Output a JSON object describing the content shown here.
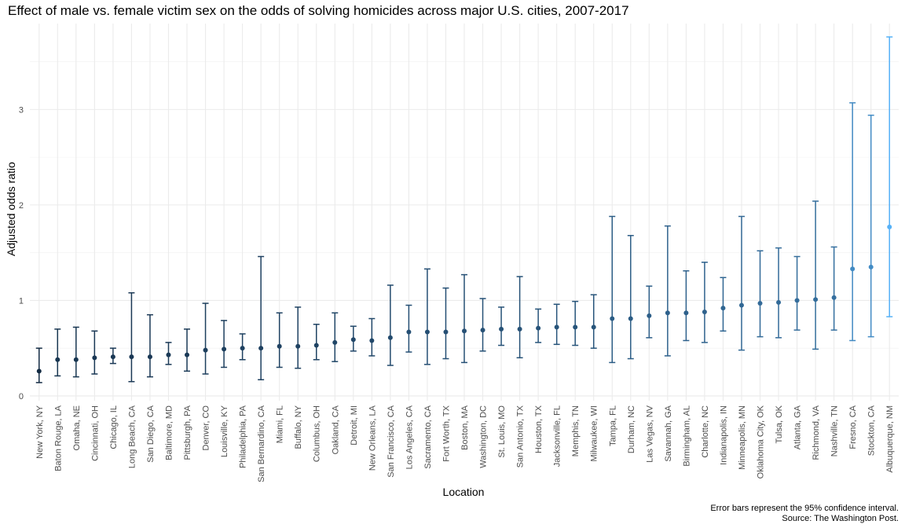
{
  "chart_data": {
    "type": "scatter",
    "title": "Effect of male vs. female victim sex on the odds of solving homicides across major U.S. cities, 2007-2017",
    "xlabel": "Location",
    "ylabel": "Adjusted odds ratio",
    "caption": [
      "Error bars represent the 95% confidence interval.",
      "Source: The Washington Post."
    ],
    "ylim": [
      -0.05,
      3.9
    ],
    "yticks": [
      0,
      1,
      2,
      3
    ],
    "grid": true,
    "error_bars": true,
    "color_scale": {
      "low": "#132b43",
      "high": "#56b1f7",
      "min": 0.26,
      "max": 1.77
    },
    "categories": [
      "New York, NY",
      "Baton Rouge, LA",
      "Omaha, NE",
      "Cincinnati, OH",
      "Chicago, IL",
      "Long Beach, CA",
      "San Diego, CA",
      "Baltimore, MD",
      "Pittsburgh, PA",
      "Denver, CO",
      "Louisville, KY",
      "Philadelphia, PA",
      "San Bernardino, CA",
      "Miami, FL",
      "Buffalo, NY",
      "Columbus, OH",
      "Oakland, CA",
      "Detroit, MI",
      "New Orleans, LA",
      "San Francisco, CA",
      "Los Angeles, CA",
      "Sacramento, CA",
      "Fort Worth, TX",
      "Boston, MA",
      "Washington, DC",
      "St. Louis, MO",
      "San Antonio, TX",
      "Houston, TX",
      "Jacksonville, FL",
      "Memphis, TN",
      "Milwaukee, WI",
      "Tampa, FL",
      "Durham, NC",
      "Las Vegas, NV",
      "Savannah, GA",
      "Birmingham, AL",
      "Charlotte, NC",
      "Indianapolis, IN",
      "Minneapolis, MN",
      "Oklahoma City, OK",
      "Tulsa, OK",
      "Atlanta, GA",
      "Richmond, VA",
      "Nashville, TN",
      "Fresno, CA",
      "Stockton, CA",
      "Albuquerque, NM"
    ],
    "estimate": [
      0.26,
      0.38,
      0.38,
      0.4,
      0.41,
      0.41,
      0.41,
      0.43,
      0.43,
      0.48,
      0.49,
      0.5,
      0.5,
      0.52,
      0.52,
      0.53,
      0.56,
      0.59,
      0.58,
      0.61,
      0.67,
      0.67,
      0.67,
      0.68,
      0.69,
      0.7,
      0.7,
      0.71,
      0.72,
      0.72,
      0.72,
      0.81,
      0.81,
      0.84,
      0.87,
      0.87,
      0.88,
      0.92,
      0.95,
      0.97,
      0.98,
      1.0,
      1.01,
      1.03,
      1.33,
      1.35,
      1.77
    ],
    "ci_low": [
      0.14,
      0.21,
      0.2,
      0.23,
      0.34,
      0.15,
      0.2,
      0.33,
      0.26,
      0.23,
      0.3,
      0.38,
      0.17,
      0.3,
      0.29,
      0.38,
      0.36,
      0.47,
      0.42,
      0.32,
      0.46,
      0.33,
      0.39,
      0.35,
      0.47,
      0.53,
      0.4,
      0.56,
      0.54,
      0.53,
      0.5,
      0.35,
      0.39,
      0.61,
      0.42,
      0.58,
      0.56,
      0.68,
      0.48,
      0.62,
      0.61,
      0.69,
      0.49,
      0.69,
      0.58,
      0.62,
      0.83
    ],
    "ci_high": [
      0.5,
      0.7,
      0.72,
      0.68,
      0.5,
      1.08,
      0.85,
      0.56,
      0.7,
      0.97,
      0.79,
      0.65,
      1.46,
      0.87,
      0.93,
      0.75,
      0.87,
      0.73,
      0.81,
      1.16,
      0.95,
      1.33,
      1.13,
      1.27,
      1.02,
      0.93,
      1.25,
      0.91,
      0.96,
      0.99,
      1.06,
      1.88,
      1.68,
      1.15,
      1.78,
      1.31,
      1.4,
      1.24,
      1.88,
      1.52,
      1.55,
      1.46,
      2.04,
      1.56,
      3.07,
      2.94,
      3.76
    ]
  }
}
